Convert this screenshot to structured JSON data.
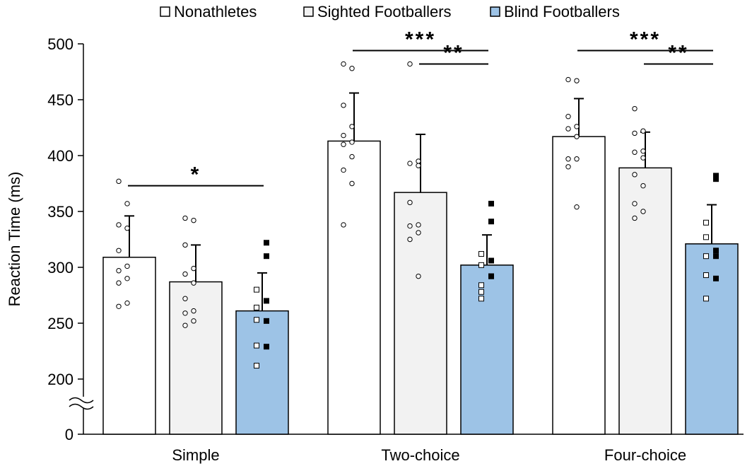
{
  "chart_data": {
    "type": "bar",
    "ylabel": "Reaction Time (ms)",
    "categories": [
      "Simple",
      "Two-choice",
      "Four-choice"
    ],
    "y_ticks": [
      "0",
      "200",
      "250",
      "300",
      "350",
      "400",
      "450",
      "500"
    ],
    "y_axis_break": true,
    "ylim": [
      200,
      500
    ],
    "legend_position": "top",
    "series": [
      {
        "name": "Nonathletes",
        "fill": "#ffffff",
        "marker": "open-circle",
        "values": [
          309,
          413,
          417
        ],
        "error": [
          37,
          43,
          34
        ],
        "points": [
          [
            377,
            357,
            338,
            335,
            315,
            301,
            297,
            290,
            286,
            268,
            265
          ],
          [
            482,
            478,
            445,
            426,
            418,
            412,
            410,
            399,
            387,
            375,
            338
          ],
          [
            468,
            467,
            435,
            426,
            424,
            417,
            397,
            397,
            390,
            354
          ]
        ]
      },
      {
        "name": "Sighted Footballers",
        "fill": "#f2f2f2",
        "marker": "open-circle",
        "values": [
          287,
          367,
          389
        ],
        "error": [
          33,
          52,
          32
        ],
        "points": [
          [
            344,
            342,
            320,
            299,
            294,
            286,
            272,
            261,
            259,
            252,
            248
          ],
          [
            482,
            395,
            393,
            391,
            358,
            338,
            337,
            331,
            325,
            292
          ],
          [
            442,
            422,
            420,
            404,
            403,
            398,
            383,
            373,
            357,
            350,
            344
          ]
        ]
      },
      {
        "name": "Blind Footballers",
        "fill": "#9dc3e6",
        "marker": "square",
        "values": [
          261,
          302,
          321
        ],
        "error": [
          34,
          27,
          35
        ],
        "points": [
          [
            [
              322,
              "filled"
            ],
            [
              310,
              "filled"
            ],
            [
              280,
              "open"
            ],
            [
              270,
              "filled"
            ],
            [
              264,
              "open"
            ],
            [
              253,
              "open"
            ],
            [
              252,
              "filled"
            ],
            [
              230,
              "open"
            ],
            [
              229,
              "filled"
            ],
            [
              212,
              "open"
            ]
          ],
          [
            [
              357,
              "filled"
            ],
            [
              341,
              "filled"
            ],
            [
              312,
              "open"
            ],
            [
              306,
              "filled"
            ],
            [
              302,
              "open"
            ],
            [
              292,
              "filled"
            ],
            [
              292,
              "filled"
            ],
            [
              284,
              "open"
            ],
            [
              278,
              "open"
            ],
            [
              272,
              "open"
            ]
          ],
          [
            [
              382,
              "filled"
            ],
            [
              379,
              "filled"
            ],
            [
              340,
              "open"
            ],
            [
              327,
              "open"
            ],
            [
              315,
              "filled"
            ],
            [
              310,
              "filled"
            ],
            [
              310,
              "open"
            ],
            [
              293,
              "open"
            ],
            [
              290,
              "filled"
            ],
            [
              272,
              "open"
            ]
          ]
        ]
      }
    ],
    "significance": [
      {
        "category": 0,
        "from": 0,
        "to": 2,
        "label": "*",
        "y": 373
      },
      {
        "category": 1,
        "from": 0,
        "to": 2,
        "label": "***",
        "y": 494
      },
      {
        "category": 1,
        "from": 1,
        "to": 2,
        "label": "**",
        "y": 482
      },
      {
        "category": 2,
        "from": 0,
        "to": 2,
        "label": "***",
        "y": 494
      },
      {
        "category": 2,
        "from": 1,
        "to": 2,
        "label": "**",
        "y": 482
      }
    ]
  }
}
